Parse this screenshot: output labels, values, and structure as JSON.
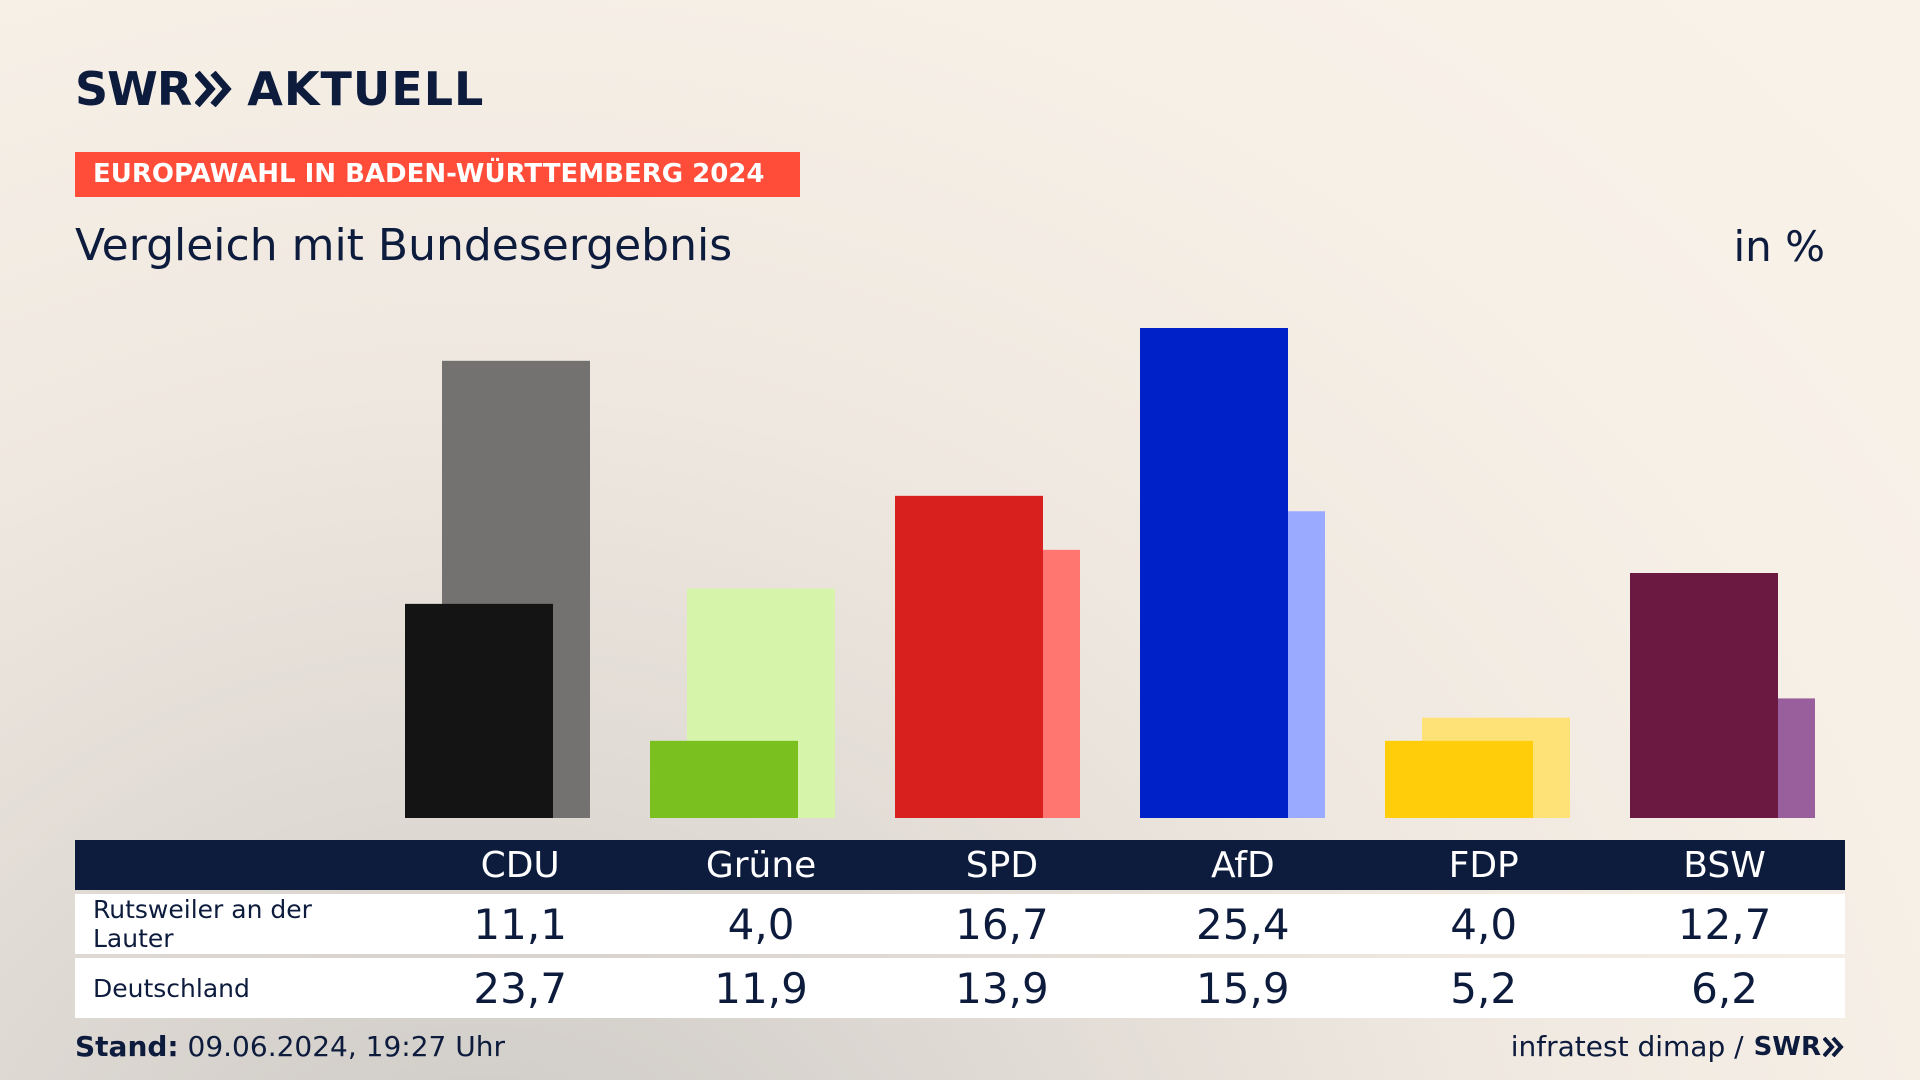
{
  "header": {
    "logo_text": "SWR",
    "brand": "AKTUELL",
    "banner": "EUROPAWAHL IN BADEN-WÜRTTEMBERG 2024",
    "subtitle": "Vergleich mit Bundesergebnis",
    "unit": "in %"
  },
  "chart_data": {
    "type": "bar",
    "categories": [
      "CDU",
      "Grüne",
      "SPD",
      "AfD",
      "FDP",
      "BSW"
    ],
    "series": [
      {
        "name": "Rutsweiler an der Lauter",
        "values": [
          11.1,
          4.0,
          16.7,
          25.4,
          4.0,
          12.7
        ]
      },
      {
        "name": "Deutschland",
        "values": [
          23.7,
          11.9,
          13.9,
          15.9,
          5.2,
          6.2
        ]
      }
    ],
    "colors_front": [
      "#141414",
      "#7ac01e",
      "#d8201f",
      "#0020c8",
      "#ffcd0a",
      "#6b1940"
    ],
    "colors_back": [
      "#737270",
      "#d6f4aa",
      "#ff7570",
      "#9aaaff",
      "#ffe277",
      "#985f9c"
    ],
    "ylim": [
      0,
      25.4
    ],
    "labels_front": [
      "11,1",
      "4,0",
      "16,7",
      "25,4",
      "4,0",
      "12,7"
    ],
    "labels_back": [
      "23,7",
      "11,9",
      "13,9",
      "15,9",
      "5,2",
      "6,2"
    ]
  },
  "footer": {
    "stand_label": "Stand:",
    "stand_value": "09.06.2024, 19:27 Uhr",
    "source": "infratest dimap /",
    "source_logo": "SWR"
  }
}
